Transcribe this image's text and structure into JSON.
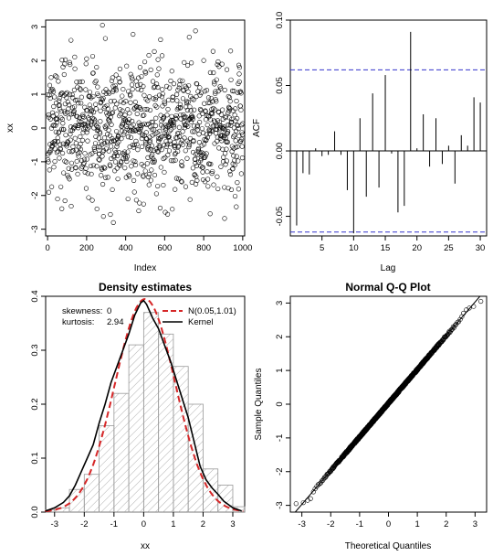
{
  "chart_data": [
    {
      "type": "scatter",
      "title": "",
      "xlabel": "Index",
      "ylabel": "xx",
      "xlim": [
        -10,
        1010
      ],
      "ylim": [
        -3.2,
        3.2
      ],
      "xticks": [
        0,
        200,
        400,
        600,
        800,
        1000
      ],
      "yticks": [
        -3,
        -2,
        -1,
        0,
        1,
        2,
        3
      ],
      "n": 1000,
      "series": [
        {
          "distribution": "normal",
          "mean": 0.05,
          "sd": 1.01,
          "point_style": "open-circle"
        }
      ]
    },
    {
      "type": "bar",
      "title": "",
      "xlabel": "Lag",
      "ylabel": "ACF",
      "xlim": [
        0,
        31
      ],
      "ylim": [
        -0.065,
        0.1
      ],
      "xticks": [
        5,
        10,
        15,
        20,
        25,
        30
      ],
      "yticks": [
        -0.05,
        0,
        0.05,
        0.1
      ],
      "confidence_band": 0.062,
      "band_color": "#3333cc",
      "lags": [
        1,
        2,
        3,
        4,
        5,
        6,
        7,
        8,
        9,
        10,
        11,
        12,
        13,
        14,
        15,
        16,
        17,
        18,
        19,
        20,
        21,
        22,
        23,
        24,
        25,
        26,
        27,
        28,
        29,
        30
      ],
      "values": [
        -0.057,
        -0.017,
        -0.018,
        0.002,
        -0.004,
        -0.003,
        0.015,
        -0.003,
        -0.03,
        -0.063,
        0.025,
        -0.035,
        0.044,
        -0.028,
        0.058,
        -0.002,
        -0.047,
        -0.042,
        0.091,
        0.002,
        0.028,
        -0.012,
        0.025,
        -0.01,
        0.004,
        -0.025,
        0.012,
        0.004,
        0.041,
        0.037
      ]
    },
    {
      "type": "bar",
      "title": "Density estimates",
      "xlabel": "xx",
      "ylabel": "",
      "xlim": [
        -3.3,
        3.4
      ],
      "ylim": [
        0,
        0.4
      ],
      "xticks": [
        -3,
        -2,
        -1,
        0,
        1,
        2,
        3
      ],
      "yticks": [
        0.0,
        0.1,
        0.2,
        0.3,
        0.4
      ],
      "bin_edges": [
        -3.5,
        -3,
        -2.5,
        -2,
        -1.5,
        -1,
        -0.5,
        0,
        0.5,
        1,
        1.5,
        2,
        2.5,
        3,
        3.5
      ],
      "values": [
        0.004,
        0.008,
        0.042,
        0.07,
        0.16,
        0.22,
        0.31,
        0.37,
        0.33,
        0.27,
        0.2,
        0.08,
        0.05,
        0.01
      ],
      "stats": [
        {
          "label": "skewness:",
          "value": "0"
        },
        {
          "label": "kurtosis:",
          "value": "2.94"
        }
      ],
      "legend": {
        "position": "top-right",
        "entries": [
          {
            "name": "N(0.05,1.01)",
            "color": "#d62728",
            "style": "dashed"
          },
          {
            "name": "Kernel",
            "color": "#000000",
            "style": "solid"
          }
        ]
      },
      "normal_curve": {
        "mean": 0.05,
        "sd": 1.01
      },
      "kernel_curve": {
        "x": [
          -3.4,
          -3.0,
          -2.7,
          -2.5,
          -2.3,
          -2.1,
          -1.9,
          -1.7,
          -1.5,
          -1.3,
          -1.1,
          -0.9,
          -0.7,
          -0.5,
          -0.3,
          -0.1,
          0.0,
          0.1,
          0.3,
          0.5,
          0.7,
          0.9,
          1.1,
          1.3,
          1.5,
          1.7,
          1.9,
          2.1,
          2.3,
          2.5,
          2.7,
          3.0,
          3.3
        ],
        "y": [
          0.002,
          0.008,
          0.018,
          0.03,
          0.05,
          0.075,
          0.1,
          0.125,
          0.165,
          0.2,
          0.24,
          0.27,
          0.3,
          0.33,
          0.365,
          0.388,
          0.392,
          0.385,
          0.36,
          0.34,
          0.31,
          0.28,
          0.245,
          0.21,
          0.175,
          0.13,
          0.085,
          0.06,
          0.045,
          0.033,
          0.02,
          0.008,
          0.002
        ]
      }
    },
    {
      "type": "scatter",
      "title": "Normal Q-Q Plot",
      "xlabel": "Theoretical Quantiles",
      "ylabel": "Sample Quantiles",
      "xlim": [
        -3.4,
        3.4
      ],
      "ylim": [
        -3.2,
        3.2
      ],
      "xticks": [
        -3,
        -2,
        -1,
        0,
        1,
        2,
        3
      ],
      "yticks": [
        -3,
        -2,
        -1,
        0,
        1,
        2,
        3
      ],
      "reference_line": {
        "intercept": 0.03,
        "slope": 1.0
      },
      "n": 1000,
      "tail_points": [
        [
          -3.2,
          -2.95
        ],
        [
          -2.95,
          -2.92
        ],
        [
          -2.8,
          -2.85
        ],
        [
          -2.7,
          -2.8
        ],
        [
          -2.6,
          -2.6
        ],
        [
          2.6,
          2.7
        ],
        [
          2.7,
          2.8
        ],
        [
          2.8,
          2.85
        ],
        [
          2.95,
          2.9
        ],
        [
          3.2,
          3.05
        ]
      ]
    }
  ]
}
